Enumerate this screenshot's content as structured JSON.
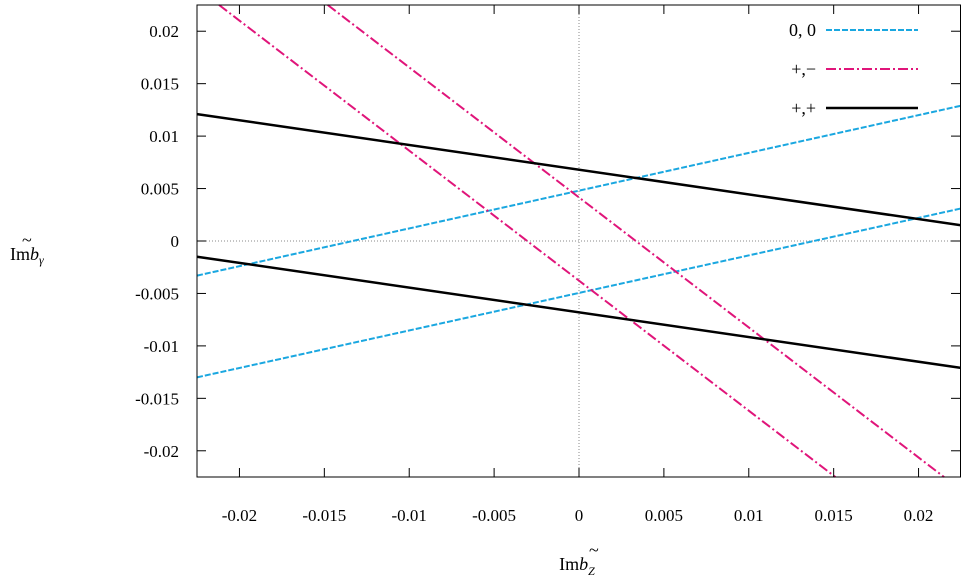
{
  "chart_data": {
    "type": "line",
    "title": "",
    "xlabel": {
      "main": "Im",
      "base": "b",
      "accent": "~",
      "sub": "Z"
    },
    "ylabel": {
      "main": "Im",
      "base": "b",
      "accent": "~",
      "sub": "γ"
    },
    "xlim": [
      -0.0225,
      0.0225
    ],
    "ylim": [
      -0.0225,
      0.0225
    ],
    "xticks": [
      -0.02,
      -0.015,
      -0.01,
      -0.005,
      0,
      0.005,
      0.01,
      0.015,
      0.02
    ],
    "xtick_labels": [
      "-0.02",
      "-0.015",
      "-0.01",
      "-0.005",
      "0",
      "0.005",
      "0.01",
      "0.015",
      "0.02"
    ],
    "yticks": [
      0.02,
      0.015,
      0.01,
      0.005,
      0,
      -0.005,
      -0.01,
      -0.015,
      -0.02
    ],
    "ytick_labels": [
      "0.02",
      "0.015",
      "0.01",
      "0.005",
      "0",
      "-0.005",
      "-0.01",
      "-0.015",
      "-0.02"
    ],
    "zero_lines": true,
    "grid": false,
    "legend_position": "top-right",
    "series": [
      {
        "name": "0, 0",
        "color": "#1aa7e0",
        "style": "dashed",
        "lines": [
          {
            "x": [
              -0.0225,
              0.0225
            ],
            "y": [
              -0.0033,
              0.0129
            ]
          },
          {
            "x": [
              -0.0225,
              0.0225
            ],
            "y": [
              -0.013,
              0.0031
            ]
          }
        ]
      },
      {
        "name": "+,−",
        "color": "#e0157a",
        "style": "dashdot",
        "lines": [
          {
            "x": [
              -0.0212,
              0.0151
            ],
            "y": [
              0.0225,
              -0.0225
            ]
          },
          {
            "x": [
              -0.0148,
              0.0215
            ],
            "y": [
              0.0225,
              -0.0225
            ]
          }
        ]
      },
      {
        "name": "+,+",
        "color": "#000000",
        "style": "solid",
        "lines": [
          {
            "x": [
              -0.0225,
              0.0225
            ],
            "y": [
              0.0121,
              0.0015
            ]
          },
          {
            "x": [
              -0.0225,
              0.0225
            ],
            "y": [
              -0.0015,
              -0.0121
            ]
          }
        ]
      }
    ]
  }
}
